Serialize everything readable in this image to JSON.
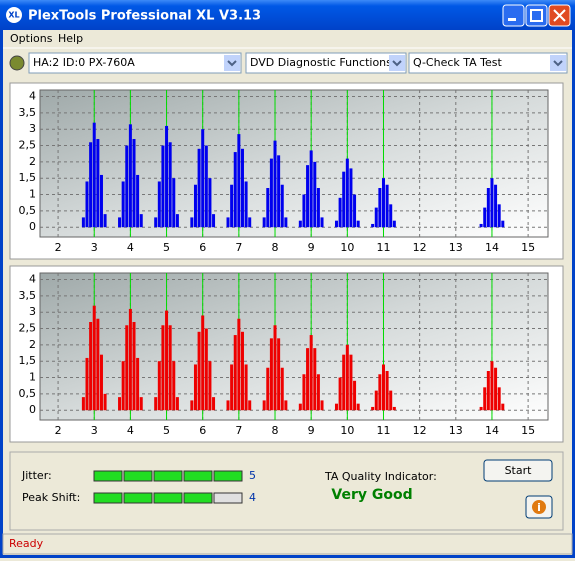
{
  "window": {
    "title": "PlexTools Professional XL V3.13"
  },
  "menu": [
    "Options",
    "Help"
  ],
  "toolbar": [
    "HA:2 ID:0  PX-760A",
    "DVD Diagnostic Functions",
    "Q-Check TA Test"
  ],
  "chart_data": [
    {
      "type": "bar",
      "color": "#0000ee",
      "marker_color": "#00dd00",
      "grid": true,
      "xlim": [
        1.5,
        15.55
      ],
      "xticks": [
        2,
        3,
        4,
        5,
        6,
        7,
        8,
        9,
        10,
        11,
        12,
        13,
        14,
        15
      ],
      "ylim": [
        -0.3,
        4.2
      ],
      "yticks": [
        0,
        {
          "value": 0.5,
          "label": "0,5"
        },
        1,
        {
          "value": 1.5,
          "label": "1,5"
        },
        2,
        {
          "value": 2.5,
          "label": "2,5"
        },
        3,
        {
          "value": 3.5,
          "label": "3,5"
        },
        4
      ],
      "markers": [
        3,
        4,
        5,
        6,
        7,
        8,
        9,
        10,
        11,
        14
      ],
      "x": [
        2.7,
        2.8,
        2.9,
        3,
        3.1,
        3.2,
        3.3,
        3.7,
        3.8,
        3.9,
        4,
        4.1,
        4.2,
        4.3,
        4.7,
        4.8,
        4.9,
        5,
        5.1,
        5.2,
        5.3,
        5.7,
        5.8,
        5.9,
        6,
        6.1,
        6.2,
        6.3,
        6.7,
        6.8,
        6.9,
        7,
        7.1,
        7.2,
        7.3,
        7.7,
        7.8,
        7.9,
        8,
        8.1,
        8.2,
        8.3,
        8.7,
        8.8,
        8.9,
        9,
        9.1,
        9.2,
        9.3,
        9.7,
        9.8,
        9.9,
        10,
        10.1,
        10.2,
        10.3,
        10.7,
        10.8,
        10.9,
        11,
        11.1,
        11.2,
        11.3,
        13.7,
        13.8,
        13.9,
        14,
        14.1,
        14.2,
        14.3
      ],
      "values": [
        0.3,
        1.4,
        2.6,
        3.2,
        2.7,
        1.6,
        0.4,
        0.3,
        1.4,
        2.5,
        3.15,
        2.7,
        1.6,
        0.4,
        0.3,
        1.4,
        2.5,
        3.1,
        2.6,
        1.5,
        0.4,
        0.3,
        1.3,
        2.4,
        3,
        2.5,
        1.5,
        0.4,
        0.3,
        1.3,
        2.3,
        2.85,
        2.4,
        1.4,
        0.3,
        0.3,
        1.2,
        2.1,
        2.65,
        2.2,
        1.3,
        0.3,
        0.2,
        1,
        1.9,
        2.35,
        2,
        1.2,
        0.3,
        0.2,
        0.9,
        1.7,
        2.1,
        1.8,
        1,
        0.2,
        0.1,
        0.6,
        1.2,
        1.5,
        1.3,
        0.7,
        0.2,
        0.1,
        0.6,
        1.2,
        1.5,
        1.3,
        0.7,
        0.2
      ]
    },
    {
      "type": "bar",
      "color": "#ee0000",
      "marker_color": "#00dd00",
      "grid": true,
      "xlim": [
        1.5,
        15.55
      ],
      "xticks": [
        2,
        3,
        4,
        5,
        6,
        7,
        8,
        9,
        10,
        11,
        12,
        13,
        14,
        15
      ],
      "ylim": [
        -0.3,
        4.2
      ],
      "yticks": [
        0,
        {
          "value": 0.5,
          "label": "0,5"
        },
        1,
        {
          "value": 1.5,
          "label": "1,5"
        },
        2,
        {
          "value": 2.5,
          "label": "2,5"
        },
        3,
        {
          "value": 3.5,
          "label": "3,5"
        },
        4
      ],
      "markers": [
        3,
        4,
        5,
        6,
        7,
        8,
        9,
        10,
        11,
        14
      ],
      "x": [
        2.7,
        2.8,
        2.9,
        3,
        3.1,
        3.2,
        3.3,
        3.7,
        3.8,
        3.9,
        4,
        4.1,
        4.2,
        4.3,
        4.7,
        4.8,
        4.9,
        5,
        5.1,
        5.2,
        5.3,
        5.7,
        5.8,
        5.9,
        6,
        6.1,
        6.2,
        6.3,
        6.7,
        6.8,
        6.9,
        7,
        7.1,
        7.2,
        7.3,
        7.7,
        7.8,
        7.9,
        8,
        8.1,
        8.2,
        8.3,
        8.7,
        8.8,
        8.9,
        9,
        9.1,
        9.2,
        9.3,
        9.7,
        9.8,
        9.9,
        10,
        10.1,
        10.2,
        10.3,
        10.7,
        10.8,
        10.9,
        11,
        11.1,
        11.2,
        11.3,
        13.7,
        13.8,
        13.9,
        14,
        14.1,
        14.2,
        14.3
      ],
      "values": [
        0.4,
        1.6,
        2.7,
        3.2,
        2.8,
        1.7,
        0.5,
        0.4,
        1.5,
        2.6,
        3.1,
        2.7,
        1.6,
        0.4,
        0.4,
        1.5,
        2.6,
        3.05,
        2.6,
        1.5,
        0.4,
        0.3,
        1.4,
        2.4,
        2.9,
        2.5,
        1.5,
        0.4,
        0.3,
        1.4,
        2.3,
        2.8,
        2.4,
        1.4,
        0.3,
        0.3,
        1.3,
        2.2,
        2.6,
        2.2,
        1.3,
        0.3,
        0.2,
        1.1,
        1.9,
        2.3,
        1.9,
        1.1,
        0.3,
        0.2,
        1,
        1.7,
        2,
        1.7,
        0.9,
        0.2,
        0.1,
        0.6,
        1.1,
        1.4,
        1.2,
        0.6,
        0.1,
        0.1,
        0.7,
        1.2,
        1.5,
        1.3,
        0.7,
        0.2
      ]
    }
  ],
  "jitter": {
    "label": "Jitter:",
    "value": 5
  },
  "peak_shift": {
    "label": "Peak Shift:",
    "value": 4
  },
  "quality": {
    "label": "TA Quality Indicator:",
    "value": "Very Good"
  },
  "buttons": {
    "start": "Start"
  },
  "status": "Ready"
}
